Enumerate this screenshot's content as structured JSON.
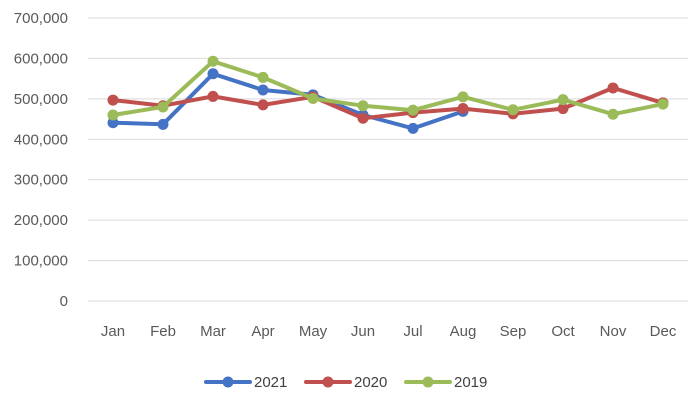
{
  "chart_data": {
    "type": "line",
    "categories": [
      "Jan",
      "Feb",
      "Mar",
      "Apr",
      "May",
      "Jun",
      "Jul",
      "Aug",
      "Sep",
      "Oct",
      "Nov",
      "Dec"
    ],
    "yticks": [
      "0",
      "100,000",
      "200,000",
      "300,000",
      "400,000",
      "500,000",
      "600,000",
      "700,000"
    ],
    "ylim": [
      0,
      700000
    ],
    "grid": true,
    "legend_position": "bottom",
    "series": [
      {
        "name": "2021",
        "color": "#4472C4",
        "values": [
          441000,
          437000,
          562000,
          522000,
          510000,
          460000,
          427000,
          469000,
          null,
          null,
          null,
          null
        ]
      },
      {
        "name": "2020",
        "color": "#C0504D",
        "values": [
          497000,
          483000,
          506000,
          485000,
          505000,
          452000,
          466000,
          476000,
          463000,
          476000,
          527000,
          490000
        ]
      },
      {
        "name": "2019",
        "color": "#9BBB59",
        "values": [
          460000,
          480000,
          593000,
          553000,
          501000,
          483000,
          472000,
          505000,
          473000,
          498000,
          462000,
          487000
        ]
      }
    ]
  }
}
